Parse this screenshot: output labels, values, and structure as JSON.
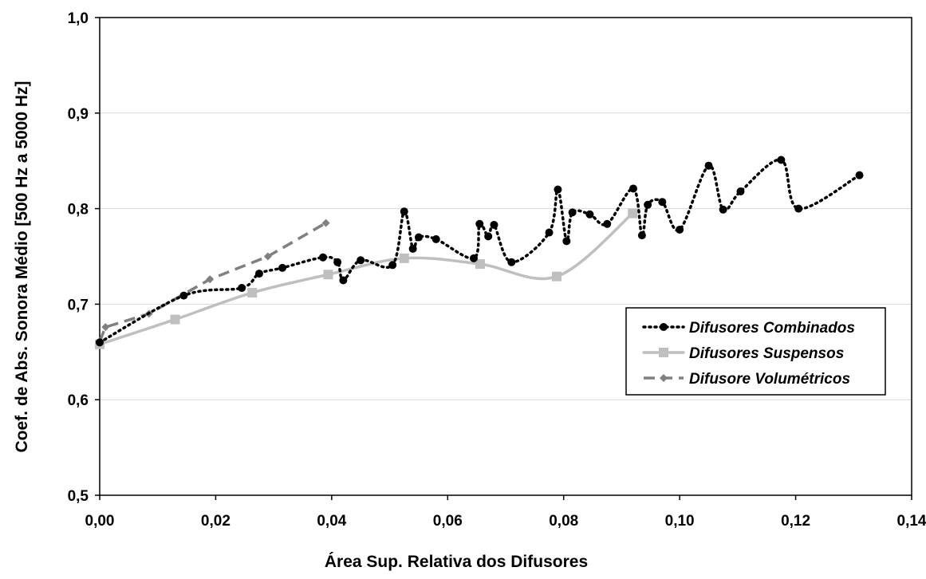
{
  "chart_data": {
    "type": "line",
    "title": "",
    "xlabel": "Área Sup. Relativa dos Difusores",
    "ylabel": "Coef. de Abs. Sonora Médio [500 Hz a 5000 Hz]",
    "xlim": [
      0,
      0.14
    ],
    "ylim": [
      0.5,
      1.0
    ],
    "x_ticks": [
      "0,00",
      "0,02",
      "0,04",
      "0,06",
      "0,08",
      "0,10",
      "0,12",
      "0,14"
    ],
    "y_ticks": [
      "0,5",
      "0,6",
      "0,7",
      "0,8",
      "0,9",
      "1,0"
    ],
    "grid": "horizontal",
    "legend_position": "right-middle",
    "series": [
      {
        "name": "Difusores Combinados",
        "color": "#000000",
        "style": "dotted",
        "marker": "circle",
        "smooth": true,
        "points": [
          [
            0.0,
            0.66
          ],
          [
            0.0145,
            0.709
          ],
          [
            0.0245,
            0.717
          ],
          [
            0.0275,
            0.732
          ],
          [
            0.0315,
            0.738
          ],
          [
            0.0385,
            0.749
          ],
          [
            0.041,
            0.744
          ],
          [
            0.042,
            0.725
          ],
          [
            0.045,
            0.746
          ],
          [
            0.0505,
            0.741
          ],
          [
            0.0525,
            0.797
          ],
          [
            0.054,
            0.758
          ],
          [
            0.055,
            0.77
          ],
          [
            0.058,
            0.768
          ],
          [
            0.0645,
            0.748
          ],
          [
            0.0655,
            0.784
          ],
          [
            0.067,
            0.771
          ],
          [
            0.068,
            0.783
          ],
          [
            0.071,
            0.744
          ],
          [
            0.0775,
            0.775
          ],
          [
            0.079,
            0.82
          ],
          [
            0.0805,
            0.766
          ],
          [
            0.0815,
            0.796
          ],
          [
            0.0845,
            0.794
          ],
          [
            0.0875,
            0.784
          ],
          [
            0.092,
            0.821
          ],
          [
            0.0935,
            0.772
          ],
          [
            0.0945,
            0.804
          ],
          [
            0.097,
            0.807
          ],
          [
            0.1,
            0.778
          ],
          [
            0.105,
            0.845
          ],
          [
            0.1075,
            0.799
          ],
          [
            0.1105,
            0.818
          ],
          [
            0.1175,
            0.851
          ],
          [
            0.1205,
            0.8
          ],
          [
            0.131,
            0.835
          ]
        ]
      },
      {
        "name": "Difusores Suspensos",
        "color": "#bfbfbf",
        "style": "solid",
        "marker": "square",
        "smooth": true,
        "points": [
          [
            0.0,
            0.658
          ],
          [
            0.013,
            0.684
          ],
          [
            0.0263,
            0.712
          ],
          [
            0.0394,
            0.731
          ],
          [
            0.0525,
            0.748
          ],
          [
            0.0656,
            0.742
          ],
          [
            0.0788,
            0.729
          ],
          [
            0.0919,
            0.795
          ]
        ]
      },
      {
        "name": "Difusore Volumétricos",
        "color": "#808080",
        "style": "dashed",
        "marker": "diamond",
        "smooth": false,
        "points": [
          [
            0.0,
            0.661
          ],
          [
            0.001,
            0.676
          ],
          [
            0.0085,
            0.69
          ],
          [
            0.019,
            0.726
          ],
          [
            0.029,
            0.75
          ],
          [
            0.039,
            0.785
          ]
        ]
      }
    ]
  }
}
